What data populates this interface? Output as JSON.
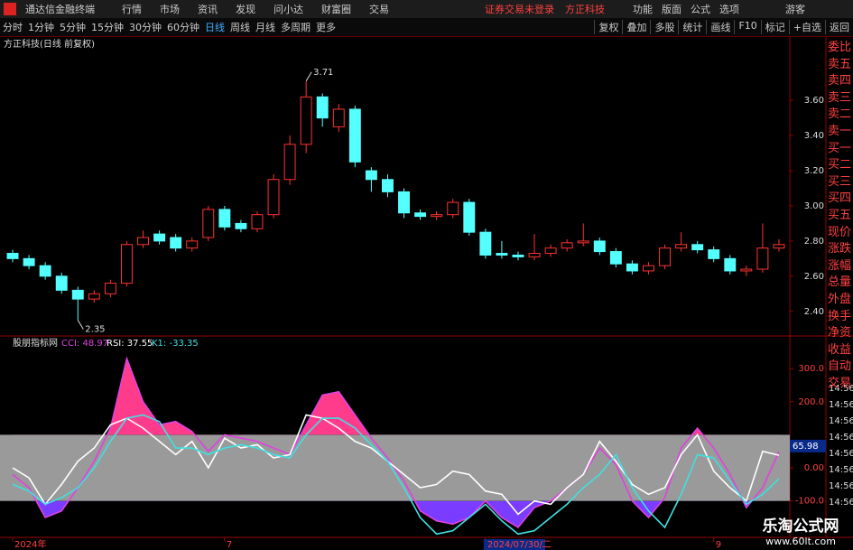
{
  "top_bar": {
    "app_title": "通达信金融终端",
    "menu": [
      "行情",
      "市场",
      "资讯",
      "发现",
      "问小达",
      "财富圈",
      "交易"
    ],
    "notice": "证券交易未登录",
    "stock_name": "方正科技",
    "right_menu": [
      "功能",
      "版面",
      "公式",
      "选项"
    ],
    "user": "游客"
  },
  "toolbar": {
    "periods": [
      "分时",
      "1分钟",
      "5分钟",
      "15分钟",
      "30分钟",
      "60分钟",
      "日线",
      "周线",
      "月线",
      "多周期",
      "更多"
    ],
    "buttons": [
      "复权",
      "叠加",
      "多股",
      "统计",
      "画线",
      "F10",
      "标记",
      "+自选",
      "返回"
    ]
  },
  "chart_header": "方正科技(日线 前复权)",
  "indicator_header": "股朋指标网",
  "chart_data": [
    {
      "type": "candlestick",
      "open": [
        2.73,
        2.7,
        2.66,
        2.6,
        2.52,
        2.47,
        2.5,
        2.56,
        2.78,
        2.84,
        2.82,
        2.76,
        2.82,
        2.98,
        2.9,
        2.87,
        2.95,
        3.15,
        3.35,
        3.62,
        3.45,
        3.55,
        3.2,
        3.15,
        3.08,
        2.96,
        2.94,
        2.95,
        3.02,
        2.85,
        2.73,
        2.72,
        2.71,
        2.73,
        2.76,
        2.79,
        2.8,
        2.74,
        2.67,
        2.63,
        2.66,
        2.76,
        2.78,
        2.75,
        2.7,
        2.63,
        2.64,
        2.76
      ],
      "high": [
        2.75,
        2.72,
        2.68,
        2.62,
        2.54,
        2.52,
        2.58,
        2.8,
        2.86,
        2.86,
        2.84,
        2.82,
        3.0,
        3.0,
        2.92,
        2.97,
        3.18,
        3.4,
        3.71,
        3.64,
        3.58,
        3.57,
        3.22,
        3.18,
        3.1,
        2.98,
        2.97,
        3.04,
        3.04,
        2.87,
        2.8,
        2.74,
        2.84,
        2.78,
        2.81,
        2.9,
        2.82,
        2.76,
        2.69,
        2.68,
        2.78,
        2.85,
        2.8,
        2.77,
        2.72,
        2.66,
        2.9,
        2.81
      ],
      "low": [
        2.68,
        2.64,
        2.58,
        2.5,
        2.35,
        2.45,
        2.48,
        2.54,
        2.76,
        2.78,
        2.74,
        2.74,
        2.8,
        2.86,
        2.85,
        2.85,
        2.93,
        3.12,
        3.3,
        3.45,
        3.42,
        3.22,
        3.08,
        3.05,
        2.93,
        2.92,
        2.92,
        2.93,
        2.83,
        2.7,
        2.7,
        2.69,
        2.69,
        2.71,
        2.74,
        2.77,
        2.72,
        2.65,
        2.61,
        2.61,
        2.64,
        2.74,
        2.73,
        2.68,
        2.61,
        2.6,
        2.62,
        2.74
      ],
      "close": [
        2.7,
        2.66,
        2.6,
        2.52,
        2.47,
        2.5,
        2.56,
        2.78,
        2.82,
        2.8,
        2.76,
        2.8,
        2.98,
        2.88,
        2.87,
        2.95,
        3.15,
        3.35,
        3.62,
        3.5,
        3.55,
        3.25,
        3.15,
        3.08,
        2.96,
        2.94,
        2.95,
        3.02,
        2.85,
        2.72,
        2.72,
        2.71,
        2.73,
        2.76,
        2.79,
        2.8,
        2.74,
        2.67,
        2.63,
        2.66,
        2.76,
        2.78,
        2.75,
        2.7,
        2.63,
        2.64,
        2.76,
        2.78
      ],
      "up_color": "#ff3232",
      "down_color": "#54ffff",
      "ylim": [
        2.26,
        3.94
      ],
      "yticks": [
        {
          "value": 2.4,
          "label": "2.40"
        },
        {
          "value": 2.6,
          "label": "2.60"
        },
        {
          "value": 2.8,
          "label": "2.80"
        },
        {
          "value": 3.0,
          "label": "3.00"
        },
        {
          "value": 3.2,
          "label": "3.20"
        },
        {
          "value": 3.4,
          "label": "3.40"
        },
        {
          "value": 3.6,
          "label": "3.60"
        }
      ],
      "annotations": [
        {
          "index": 18,
          "value": 3.71,
          "label": "3.71"
        },
        {
          "index": 4,
          "value": 2.35,
          "label": "2.35"
        }
      ]
    },
    {
      "type": "line",
      "series": [
        {
          "name": "CCI",
          "legend": "CCI: 48.97",
          "color": "#e040e0",
          "values": [
            -20,
            -60,
            -150,
            -130,
            -60,
            20,
            120,
            330,
            200,
            130,
            140,
            110,
            50,
            100,
            90,
            80,
            60,
            40,
            130,
            220,
            230,
            160,
            90,
            30,
            -40,
            -130,
            -160,
            -170,
            -150,
            -100,
            -150,
            -180,
            -120,
            -100,
            -60,
            -20,
            60,
            10,
            -100,
            -150,
            -90,
            60,
            120,
            60,
            -20,
            -120,
            -60,
            49
          ]
        },
        {
          "name": "RSI",
          "legend": "RSI: 37.55",
          "color": "#ffffff",
          "values": [
            0,
            -30,
            -110,
            -50,
            20,
            60,
            130,
            150,
            120,
            80,
            40,
            80,
            0,
            90,
            60,
            70,
            30,
            40,
            160,
            150,
            120,
            80,
            60,
            20,
            -20,
            -60,
            -50,
            -10,
            -20,
            -70,
            -80,
            -140,
            -100,
            -110,
            -60,
            -20,
            80,
            20,
            -50,
            -80,
            -60,
            40,
            100,
            -10,
            -60,
            -100,
            50,
            38
          ]
        },
        {
          "name": "K1",
          "legend": "K1: -33.35",
          "color": "#40e0e0",
          "values": [
            -50,
            -70,
            -110,
            -90,
            -60,
            0,
            80,
            150,
            160,
            140,
            60,
            60,
            40,
            60,
            70,
            60,
            40,
            30,
            100,
            150,
            150,
            120,
            70,
            20,
            -60,
            -150,
            -200,
            -190,
            -150,
            -110,
            -160,
            -200,
            -190,
            -150,
            -110,
            -60,
            -20,
            40,
            -60,
            -130,
            -180,
            -80,
            40,
            30,
            -40,
            -110,
            -80,
            -33
          ]
        }
      ],
      "band": [
        -100,
        100
      ],
      "band_color": "#9a9a9a",
      "upper_fill": "#ff3c8c",
      "lower_fill": "#7a3cff",
      "ylim": [
        -210,
        355
      ],
      "yticks": [
        {
          "value": -100,
          "label": "-100.0"
        },
        {
          "value": 0,
          "label": "0.00"
        },
        {
          "value": 200,
          "label": "200.0"
        },
        {
          "value": 300,
          "label": "300.0"
        }
      ],
      "current_value": 65.98
    }
  ],
  "x_labels": [
    {
      "index": 0,
      "label": "2024年"
    },
    {
      "index": 13,
      "label": "7"
    },
    {
      "index": 29,
      "label": "2024/07/30/二"
    },
    {
      "index": 43,
      "label": "9"
    }
  ],
  "side_panel": [
    "委比",
    "卖五",
    "卖四",
    "卖三",
    "卖二",
    "卖一",
    "买一",
    "买二",
    "买三",
    "买四",
    "买五",
    "现价",
    "涨跌",
    "涨幅",
    "总量",
    "外盘",
    "换手",
    "净资",
    "收益"
  ],
  "side_panel_bottom": [
    "自动",
    "交易"
  ],
  "times": [
    "14:56",
    "14:56",
    "14:56",
    "14:56",
    "14:56",
    "14:56",
    "14:56",
    "14:56"
  ],
  "watermark": {
    "title": "乐淘公式网",
    "url": "www.60lt.com"
  }
}
